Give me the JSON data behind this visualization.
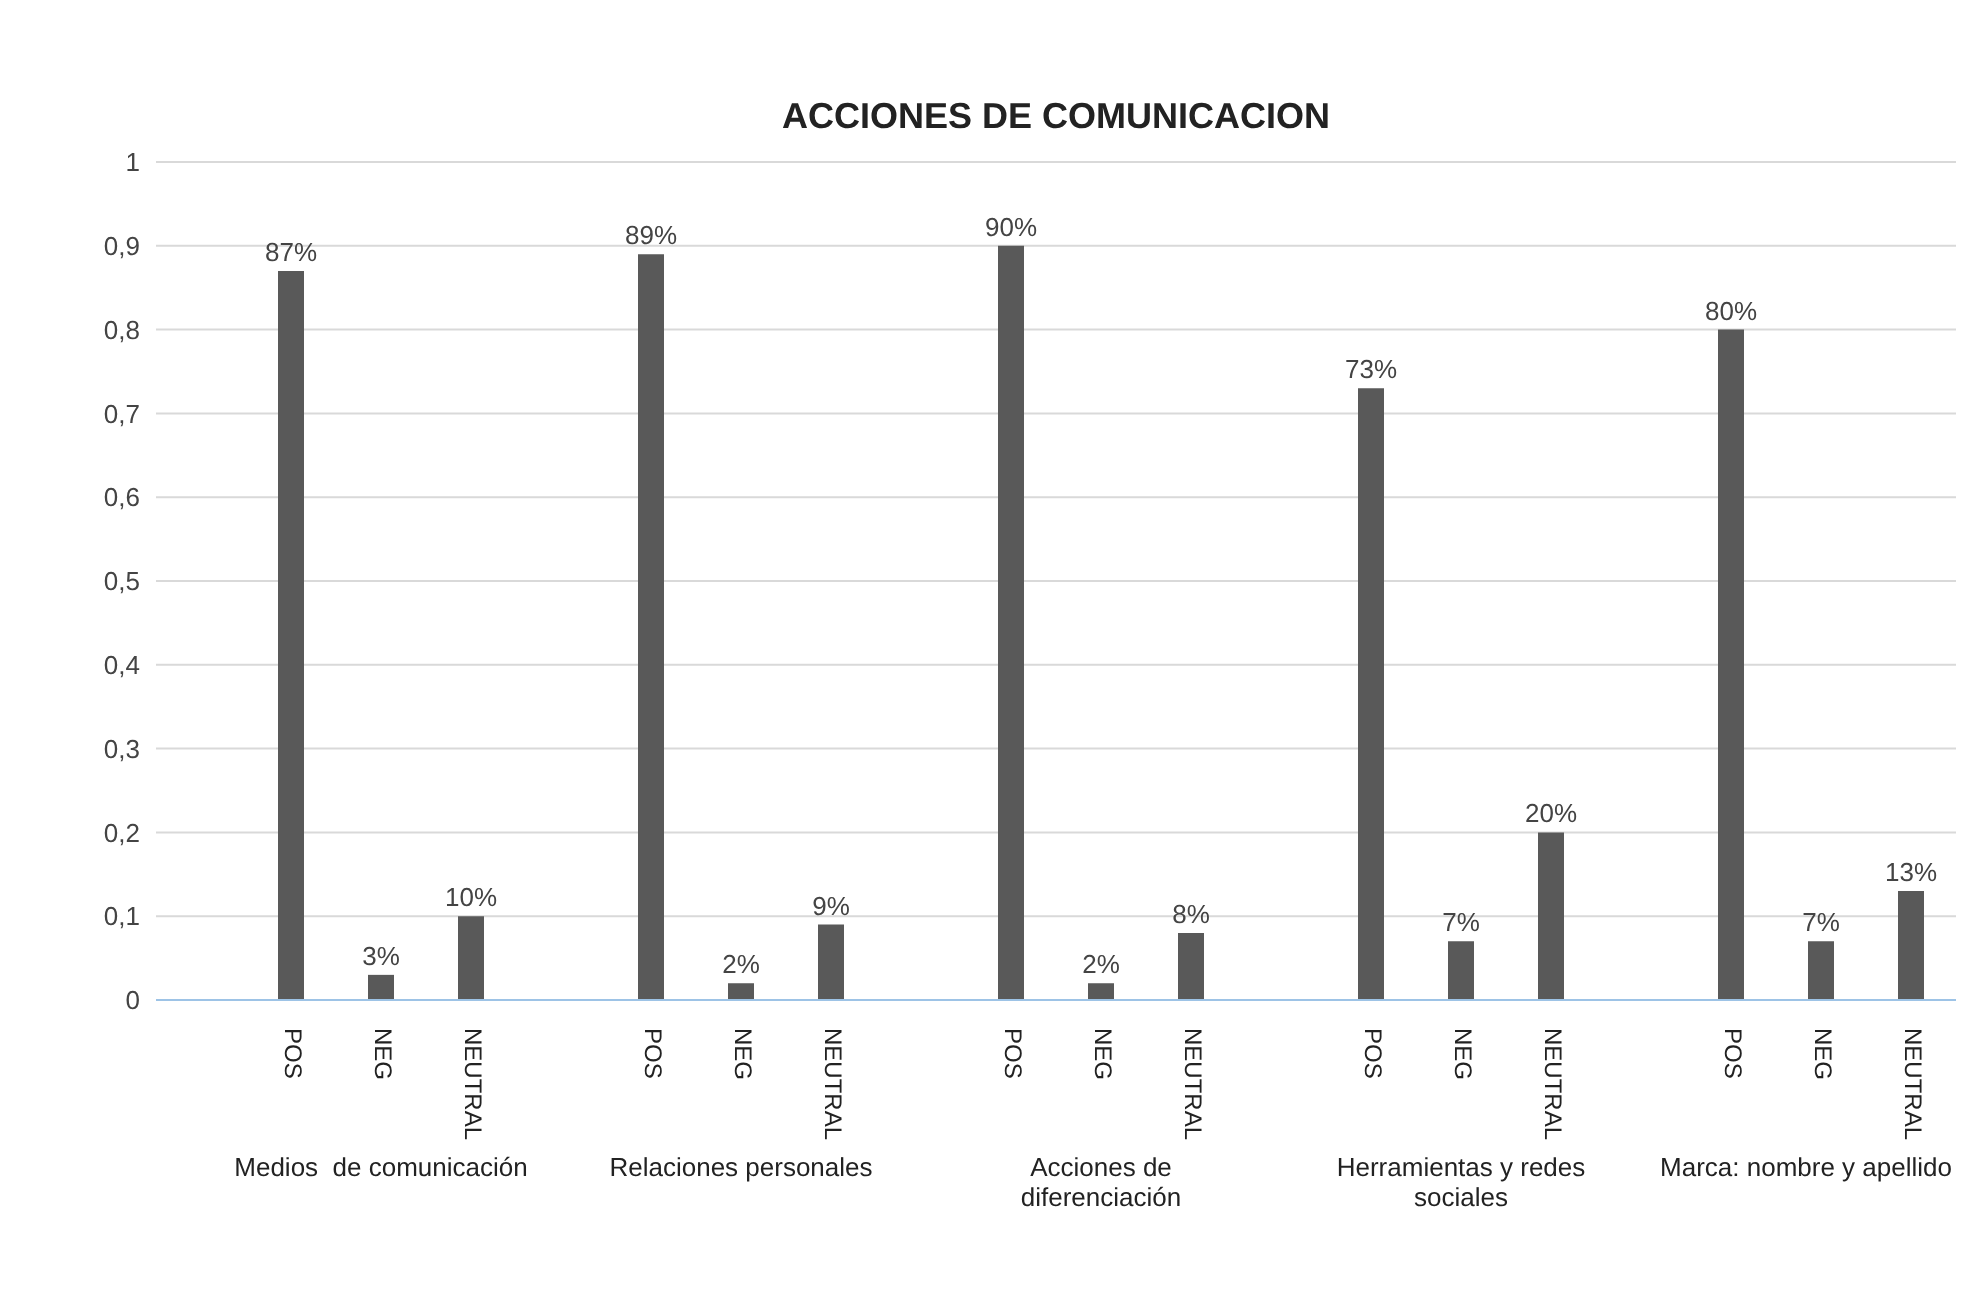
{
  "chart_data": {
    "type": "bar",
    "title": "ACCIONES DE COMUNICACION",
    "categories": [
      null,
      "POS",
      "NEG",
      "NEUTRAL",
      null,
      "POS",
      "NEG",
      "NEUTRAL",
      null,
      "POS",
      "NEG",
      "NEUTRAL",
      null,
      "POS",
      "NEG",
      "NEUTRAL",
      null,
      "POS",
      "NEG",
      "NEUTRAL"
    ],
    "values": [
      null,
      0.87,
      0.03,
      0.1,
      null,
      0.89,
      0.02,
      0.09,
      null,
      0.9,
      0.02,
      0.08,
      null,
      0.73,
      0.07,
      0.2,
      null,
      0.8,
      0.07,
      0.13
    ],
    "value_labels": [
      null,
      "87%",
      "3%",
      "10%",
      null,
      "89%",
      "2%",
      "9%",
      null,
      "90%",
      "2%",
      "8%",
      null,
      "73%",
      "7%",
      "20%",
      null,
      "80%",
      "7%",
      "13%"
    ],
    "color": "#595959",
    "ylim": [
      0,
      1
    ],
    "yticks": [
      0,
      {
        "value": 0.1,
        "label": "0,1"
      },
      {
        "value": 0.2,
        "label": "0,2"
      },
      {
        "value": 0.3,
        "label": "0,3"
      },
      {
        "value": 0.4,
        "label": "0,4"
      },
      {
        "value": 0.5,
        "label": "0,5"
      },
      {
        "value": 0.6,
        "label": "0,6"
      },
      {
        "value": 0.7,
        "label": "0,7"
      },
      {
        "value": 0.8,
        "label": "0,8"
      },
      {
        "value": 0.9,
        "label": "0,9"
      },
      1
    ],
    "grid": "y",
    "annotations": [
      "Medios  de comunicación",
      "Relaciones personales",
      "Acciones de diferenciación",
      "Herramientas y redes sociales",
      "Marca: nombre y apellido"
    ]
  }
}
